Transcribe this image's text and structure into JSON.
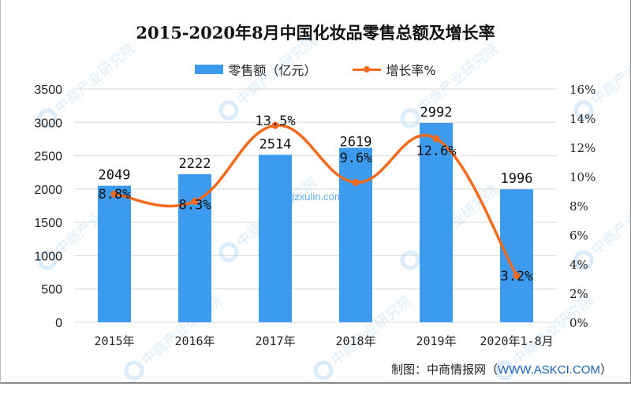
{
  "title": "2015-2020年8月中国化妆品零售总额及增长率",
  "legend": {
    "bar_label": "零售额（亿元）",
    "line_label": "增长率%"
  },
  "source": {
    "prefix": "制图：中商情报网（",
    "url": "WWW.ASKCI.COM",
    "suffix": "）"
  },
  "watermark": {
    "text": "中商产业研究院",
    "url": "www.gzxulin.com"
  },
  "colors": {
    "bar": "#3d9bef",
    "line": "#f26a1b",
    "grid": "#d9d9d9"
  },
  "chart_data": {
    "type": "bar",
    "title": "2015-2020年8月中国化妆品零售总额及增长率",
    "categories": [
      "2015年",
      "2016年",
      "2017年",
      "2018年",
      "2019年",
      "2020年1-8月"
    ],
    "series": [
      {
        "name": "零售额（亿元）",
        "type": "bar",
        "axis": "left",
        "values": [
          2049,
          2222,
          2514,
          2619,
          2992,
          1996
        ],
        "labels": [
          "2049",
          "2222",
          "2514",
          "2619",
          "2992",
          "1996"
        ]
      },
      {
        "name": "增长率%",
        "type": "line",
        "axis": "right",
        "values": [
          8.8,
          8.3,
          13.5,
          9.6,
          12.6,
          3.2
        ],
        "labels": [
          "8.8%",
          "8.3%",
          "13.5%",
          "9.6%",
          "12.6%",
          "3.2%"
        ]
      }
    ],
    "xlabel": "",
    "ylabel": "",
    "ylim": [
      0,
      3500
    ],
    "y2lim": [
      0,
      16
    ],
    "yticks": [
      "0",
      "500",
      "1000",
      "1500",
      "2000",
      "2500",
      "3000",
      "3500"
    ],
    "y2ticks": [
      "0%",
      "2%",
      "4%",
      "6%",
      "8%",
      "10%",
      "12%",
      "14%",
      "16%"
    ],
    "grid": true,
    "legend_position": "top"
  }
}
